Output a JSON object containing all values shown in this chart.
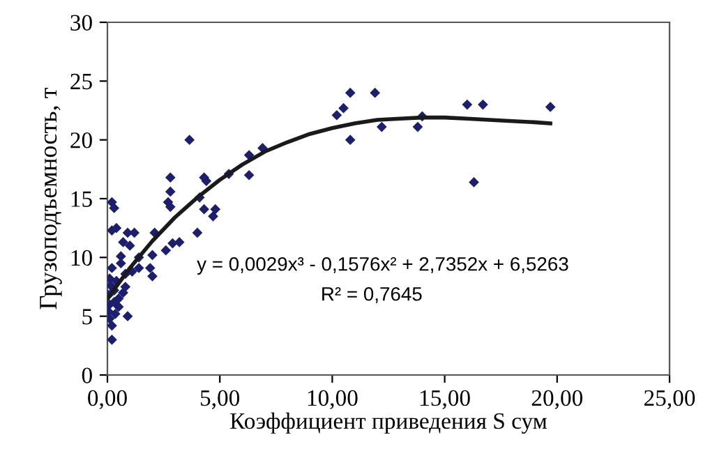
{
  "chart_data": {
    "type": "scatter",
    "xlabel": "Коэффициент приведения S сум",
    "ylabel": "Грузоподъемность, т",
    "xlim": [
      0,
      25
    ],
    "ylim": [
      0,
      30
    ],
    "xticks": [
      {
        "value": 0,
        "label": "0,00"
      },
      {
        "value": 5,
        "label": "5,00"
      },
      {
        "value": 10,
        "label": "10,00"
      },
      {
        "value": 15,
        "label": "15,00"
      },
      {
        "value": 20,
        "label": "20,00"
      },
      {
        "value": 25,
        "label": "25,00"
      }
    ],
    "yticks": [
      0,
      5,
      10,
      15,
      20,
      25,
      30
    ],
    "grid": false,
    "marker": "diamond",
    "annotations": [
      "y = 0,0029x³ - 0,1576x² + 2,7352x + 6,5263",
      "R² = 0,7645"
    ],
    "series": [
      {
        "color": "#1c1f6e",
        "x": [
          3.65,
          6.9,
          6.3,
          6.3,
          5.4,
          4.3,
          4.4,
          2.8,
          2.8,
          2.7,
          2.8,
          4.1,
          4.3,
          4.8,
          4.7,
          4.0,
          3.2,
          2.9,
          2.6,
          2.1,
          2.0,
          1.9,
          2.0,
          0.2,
          0.3,
          0.2,
          0.4,
          0.7,
          0.9,
          1.2,
          1.0,
          0.6,
          1.4,
          1.4,
          0.8,
          0.2,
          0.1,
          0.05,
          0.1,
          0.05,
          0.1,
          0.2,
          0.9,
          0.5,
          0.3,
          0.4,
          0.6,
          0.8,
          1.1,
          0.3,
          0.5,
          0.2,
          0.7,
          0.15,
          0.35,
          10.2,
          10.5,
          10.8,
          10.8,
          11.9,
          12.2,
          13.8,
          14.0,
          16.0,
          16.3,
          16.7,
          19.7
        ],
        "values": [
          20.0,
          19.3,
          18.7,
          17.0,
          17.1,
          16.8,
          16.5,
          16.8,
          15.6,
          14.7,
          14.3,
          15.1,
          14.1,
          14.1,
          13.5,
          12.1,
          11.3,
          11.2,
          10.6,
          12.1,
          10.2,
          9.1,
          8.4,
          14.7,
          14.2,
          12.3,
          12.5,
          11.3,
          12.1,
          12.1,
          11.0,
          10.1,
          10.0,
          9.1,
          8.6,
          9.1,
          8.2,
          6.8,
          6.0,
          5.4,
          4.8,
          3.0,
          5.0,
          6.5,
          7.2,
          8.0,
          9.5,
          7.5,
          8.8,
          6.2,
          5.8,
          4.2,
          7.0,
          7.6,
          5.2,
          22.1,
          22.7,
          24.0,
          20.0,
          24.0,
          21.1,
          21.1,
          22.0,
          23.0,
          16.4,
          23.0,
          22.8
        ]
      },
      {
        "type": "line",
        "color": "#1a1a1a",
        "marker": "none",
        "line_style": "solid",
        "x": [
          0,
          1,
          2,
          3,
          4,
          5,
          6,
          7,
          8,
          9,
          10,
          11,
          12,
          13,
          14,
          15,
          16,
          17,
          18,
          19,
          19.7
        ],
        "values": [
          6.5,
          9.1,
          11.4,
          13.4,
          15.1,
          16.6,
          17.9,
          19.0,
          19.8,
          20.5,
          21.0,
          21.4,
          21.7,
          21.8,
          21.9,
          21.9,
          21.8,
          21.7,
          21.6,
          21.5,
          21.4
        ]
      }
    ]
  }
}
